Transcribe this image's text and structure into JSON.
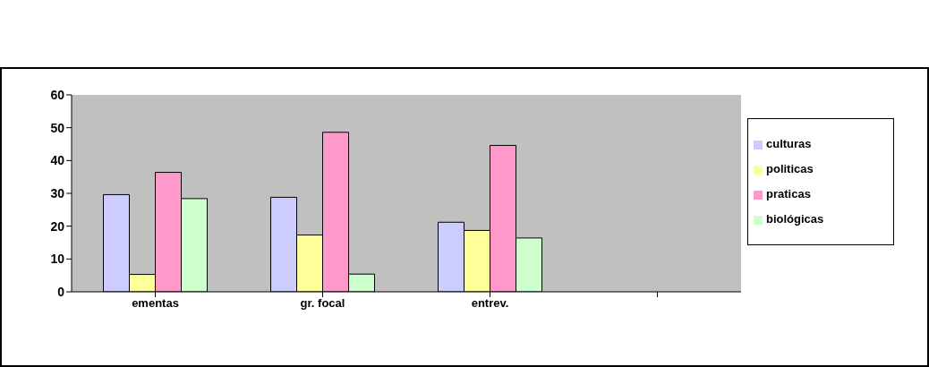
{
  "chart_data": {
    "type": "bar",
    "categories": [
      "ementas",
      "gr. focal",
      "entrev.",
      null
    ],
    "series": [
      {
        "name": "culturas",
        "color": "#ccccff",
        "values": [
          29.6,
          28.8,
          21.2,
          null
        ]
      },
      {
        "name": "politicas",
        "color": "#ffff99",
        "values": [
          5.3,
          17.3,
          18.7,
          null
        ]
      },
      {
        "name": "praticas",
        "color": "#ff99cc",
        "values": [
          36.4,
          48.6,
          44.6,
          null
        ]
      },
      {
        "name": "biológicas",
        "color": "#ccffcc",
        "values": [
          28.4,
          5.4,
          16.4,
          null
        ]
      }
    ],
    "ylim": [
      0,
      60
    ],
    "yticks": [
      0,
      10,
      20,
      30,
      40,
      50,
      60
    ],
    "grid": false,
    "legend": "right"
  }
}
